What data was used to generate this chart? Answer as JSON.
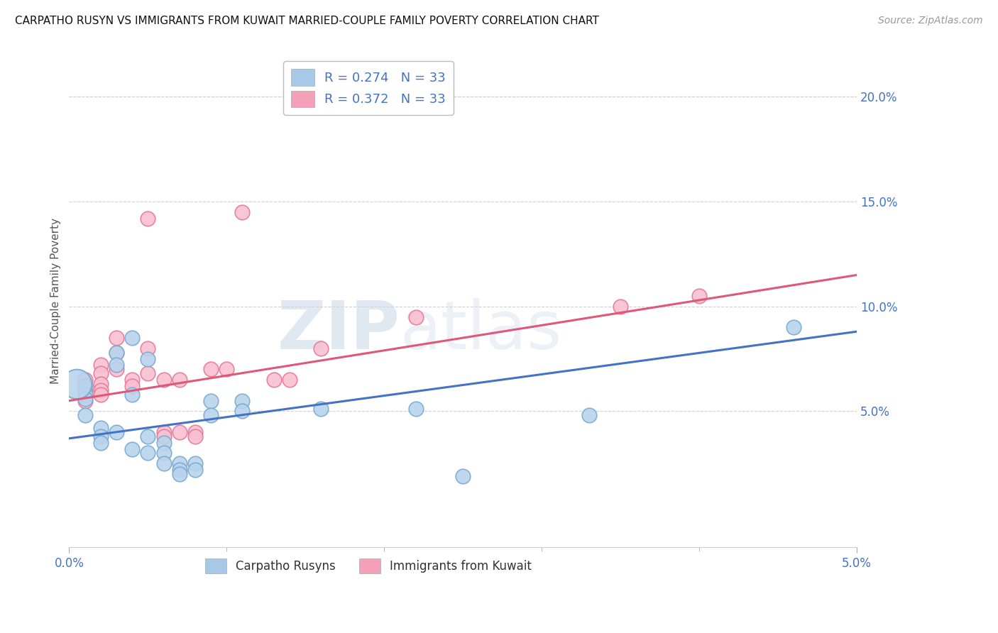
{
  "title": "CARPATHO RUSYN VS IMMIGRANTS FROM KUWAIT MARRIED-COUPLE FAMILY POVERTY CORRELATION CHART",
  "source": "Source: ZipAtlas.com",
  "ylabel": "Married-Couple Family Poverty",
  "right_yticks": [
    0.05,
    0.1,
    0.15,
    0.2
  ],
  "right_ytick_labels": [
    "5.0%",
    "10.0%",
    "15.0%",
    "20.0%"
  ],
  "legend_entries": [
    {
      "label": "R = 0.274   N = 33",
      "color": "#a8c8e8"
    },
    {
      "label": "R = 0.372   N = 33",
      "color": "#f4a0b8"
    }
  ],
  "legend_labels_bottom": [
    "Carpatho Rusyns",
    "Immigrants from Kuwait"
  ],
  "legend_colors_bottom": [
    "#a8c8e8",
    "#f4a0b8"
  ],
  "blue_scatter": [
    [
      0.001,
      0.062
    ],
    [
      0.001,
      0.058
    ],
    [
      0.001,
      0.056
    ],
    [
      0.002,
      0.042
    ],
    [
      0.002,
      0.038
    ],
    [
      0.002,
      0.035
    ],
    [
      0.003,
      0.078
    ],
    [
      0.003,
      0.072
    ],
    [
      0.003,
      0.04
    ],
    [
      0.004,
      0.085
    ],
    [
      0.004,
      0.058
    ],
    [
      0.004,
      0.032
    ],
    [
      0.005,
      0.075
    ],
    [
      0.005,
      0.038
    ],
    [
      0.005,
      0.03
    ],
    [
      0.006,
      0.035
    ],
    [
      0.006,
      0.03
    ],
    [
      0.006,
      0.025
    ],
    [
      0.007,
      0.025
    ],
    [
      0.007,
      0.022
    ],
    [
      0.007,
      0.02
    ],
    [
      0.008,
      0.025
    ],
    [
      0.008,
      0.022
    ],
    [
      0.009,
      0.055
    ],
    [
      0.009,
      0.048
    ],
    [
      0.011,
      0.055
    ],
    [
      0.011,
      0.05
    ],
    [
      0.016,
      0.051
    ],
    [
      0.022,
      0.051
    ],
    [
      0.025,
      0.019
    ],
    [
      0.033,
      0.048
    ],
    [
      0.046,
      0.09
    ],
    [
      0.001,
      0.048
    ]
  ],
  "pink_scatter": [
    [
      0.001,
      0.065
    ],
    [
      0.001,
      0.062
    ],
    [
      0.001,
      0.06
    ],
    [
      0.002,
      0.072
    ],
    [
      0.002,
      0.068
    ],
    [
      0.002,
      0.063
    ],
    [
      0.002,
      0.06
    ],
    [
      0.002,
      0.058
    ],
    [
      0.003,
      0.085
    ],
    [
      0.003,
      0.078
    ],
    [
      0.003,
      0.07
    ],
    [
      0.004,
      0.065
    ],
    [
      0.004,
      0.062
    ],
    [
      0.005,
      0.142
    ],
    [
      0.005,
      0.08
    ],
    [
      0.005,
      0.068
    ],
    [
      0.006,
      0.065
    ],
    [
      0.006,
      0.04
    ],
    [
      0.006,
      0.038
    ],
    [
      0.007,
      0.065
    ],
    [
      0.007,
      0.04
    ],
    [
      0.008,
      0.04
    ],
    [
      0.008,
      0.038
    ],
    [
      0.009,
      0.07
    ],
    [
      0.01,
      0.07
    ],
    [
      0.011,
      0.145
    ],
    [
      0.013,
      0.065
    ],
    [
      0.014,
      0.065
    ],
    [
      0.016,
      0.08
    ],
    [
      0.022,
      0.095
    ],
    [
      0.035,
      0.1
    ],
    [
      0.04,
      0.105
    ],
    [
      0.001,
      0.055
    ]
  ],
  "blue_line_x": [
    0.0,
    0.05
  ],
  "blue_line_y": [
    0.037,
    0.088
  ],
  "pink_line_x": [
    0.0,
    0.05
  ],
  "pink_line_y": [
    0.055,
    0.115
  ],
  "xlim": [
    0.0,
    0.05
  ],
  "ylim": [
    -0.015,
    0.22
  ],
  "blue_line_color": "#4472c4",
  "pink_line_color": "#e05878",
  "blue_scatter_face": "#b8d4ed",
  "blue_scatter_edge": "#7aaad0",
  "pink_scatter_face": "#f8c0d0",
  "pink_scatter_edge": "#e87898",
  "watermark_zip": "ZIP",
  "watermark_atlas": "atlas",
  "background_color": "#ffffff",
  "grid_color": "#d0d0d0"
}
